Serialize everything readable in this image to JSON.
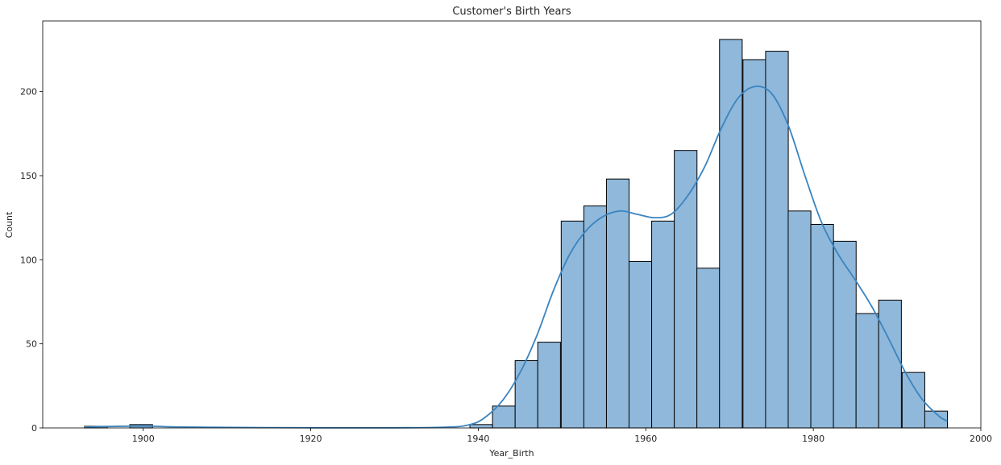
{
  "chart_data": {
    "type": "bar",
    "title": "Customer's Birth Years",
    "xlabel": "Year_Birth",
    "ylabel": "Count",
    "xlim": [
      1888,
      2000
    ],
    "ylim": [
      0,
      242
    ],
    "xticks": [
      1900,
      1920,
      1940,
      1960,
      1980,
      2000
    ],
    "yticks": [
      0,
      50,
      100,
      150,
      200
    ],
    "bin_width": 2.71,
    "bins": [
      {
        "x0": 1893.0,
        "count": 1
      },
      {
        "x0": 1895.7,
        "count": 0
      },
      {
        "x0": 1898.4,
        "count": 2
      },
      {
        "x0": 1939.0,
        "count": 2
      },
      {
        "x0": 1941.7,
        "count": 13
      },
      {
        "x0": 1944.4,
        "count": 40
      },
      {
        "x0": 1947.1,
        "count": 51
      },
      {
        "x0": 1949.9,
        "count": 123
      },
      {
        "x0": 1952.6,
        "count": 132
      },
      {
        "x0": 1955.3,
        "count": 148
      },
      {
        "x0": 1958.0,
        "count": 99
      },
      {
        "x0": 1960.7,
        "count": 123
      },
      {
        "x0": 1963.4,
        "count": 165
      },
      {
        "x0": 1966.1,
        "count": 95
      },
      {
        "x0": 1968.8,
        "count": 231
      },
      {
        "x0": 1971.6,
        "count": 219
      },
      {
        "x0": 1974.3,
        "count": 224
      },
      {
        "x0": 1977.0,
        "count": 129
      },
      {
        "x0": 1979.7,
        "count": 121
      },
      {
        "x0": 1982.4,
        "count": 111
      },
      {
        "x0": 1985.1,
        "count": 68
      },
      {
        "x0": 1987.8,
        "count": 76
      },
      {
        "x0": 1990.6,
        "count": 33
      },
      {
        "x0": 1993.3,
        "count": 10
      }
    ],
    "kde": [
      [
        1893,
        0.6
      ],
      [
        1900,
        1.1
      ],
      [
        1905,
        0.5
      ],
      [
        1920,
        0.1
      ],
      [
        1935,
        0.3
      ],
      [
        1939,
        2
      ],
      [
        1941,
        7
      ],
      [
        1943,
        17
      ],
      [
        1945,
        33
      ],
      [
        1947,
        55
      ],
      [
        1949,
        82
      ],
      [
        1951,
        104
      ],
      [
        1953,
        118
      ],
      [
        1955,
        126
      ],
      [
        1957,
        129
      ],
      [
        1959,
        127
      ],
      [
        1961,
        125
      ],
      [
        1963,
        127
      ],
      [
        1965,
        138
      ],
      [
        1967,
        155
      ],
      [
        1969,
        178
      ],
      [
        1971,
        196
      ],
      [
        1973,
        203
      ],
      [
        1975,
        199
      ],
      [
        1977,
        180
      ],
      [
        1979,
        150
      ],
      [
        1981,
        122
      ],
      [
        1983,
        103
      ],
      [
        1985,
        88
      ],
      [
        1987,
        72
      ],
      [
        1989,
        53
      ],
      [
        1991,
        33
      ],
      [
        1993,
        17
      ],
      [
        1995,
        7
      ],
      [
        1996,
        4
      ]
    ],
    "colors": {
      "bar_fill": "#8fb8da",
      "bar_edge": "#000000",
      "kde_line": "#3a84c0"
    },
    "grid": false,
    "legend": "none"
  }
}
